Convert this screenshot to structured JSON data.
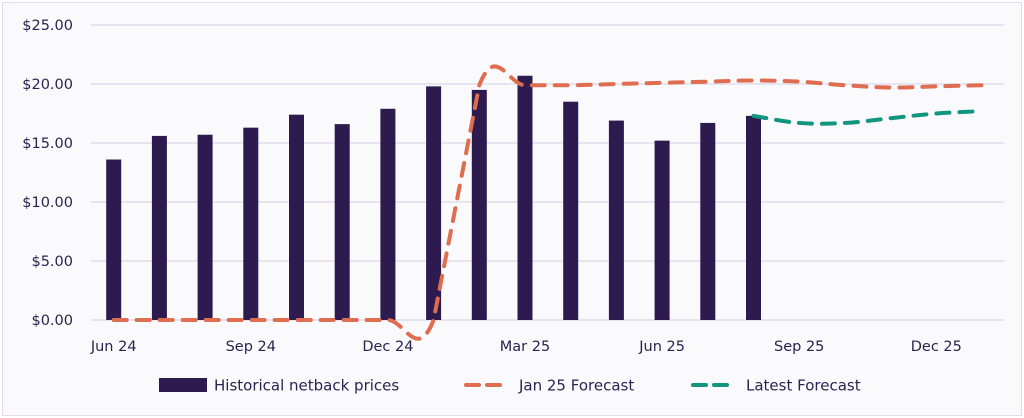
{
  "chart_data": {
    "type": "bar+line",
    "categories": [
      "Jun 24",
      "Jul 24",
      "Aug 24",
      "Sep 24",
      "Oct 24",
      "Nov 24",
      "Dec 24",
      "Jan 25",
      "Feb 25",
      "Mar 25",
      "Apr 25",
      "May 25",
      "Jun 25",
      "Jul 25",
      "Aug 25",
      "Sep 25",
      "Oct 25",
      "Nov 25",
      "Dec 25",
      "Jan 26"
    ],
    "x_tick_labels": [
      "Jun 24",
      "Sep 24",
      "Dec 24",
      "Mar 25",
      "Jun 25",
      "Sep 25",
      "Dec 25"
    ],
    "y_tick_labels": [
      "$0.00",
      "$5.00",
      "$10.00",
      "$15.00",
      "$20.00",
      "$25.00"
    ],
    "ylim": [
      0,
      25
    ],
    "grid": true,
    "legend_position": "bottom",
    "series": [
      {
        "name": "Historical netback prices",
        "type": "bar",
        "color": "#2d1a4f",
        "values": [
          13.6,
          15.6,
          15.7,
          16.3,
          17.4,
          16.6,
          17.9,
          19.8,
          19.5,
          20.7,
          18.5,
          16.9,
          15.2,
          16.7,
          17.3,
          null,
          null,
          null,
          null,
          null
        ]
      },
      {
        "name": "Jan 25 Forecast",
        "type": "line",
        "style": "dashed",
        "color": "#df6d4f",
        "values": [
          0,
          0,
          0,
          0,
          0,
          0,
          0,
          0,
          19.9,
          19.9,
          19.9,
          20.0,
          20.1,
          20.2,
          20.3,
          20.2,
          19.9,
          19.7,
          19.8,
          19.9
        ]
      },
      {
        "name": "Latest Forecast",
        "type": "line",
        "style": "dashed",
        "color": "#11957f",
        "values": [
          null,
          null,
          null,
          null,
          null,
          null,
          null,
          null,
          null,
          null,
          null,
          null,
          null,
          null,
          17.3,
          16.7,
          16.7,
          17.1,
          17.5,
          17.7
        ]
      }
    ]
  }
}
